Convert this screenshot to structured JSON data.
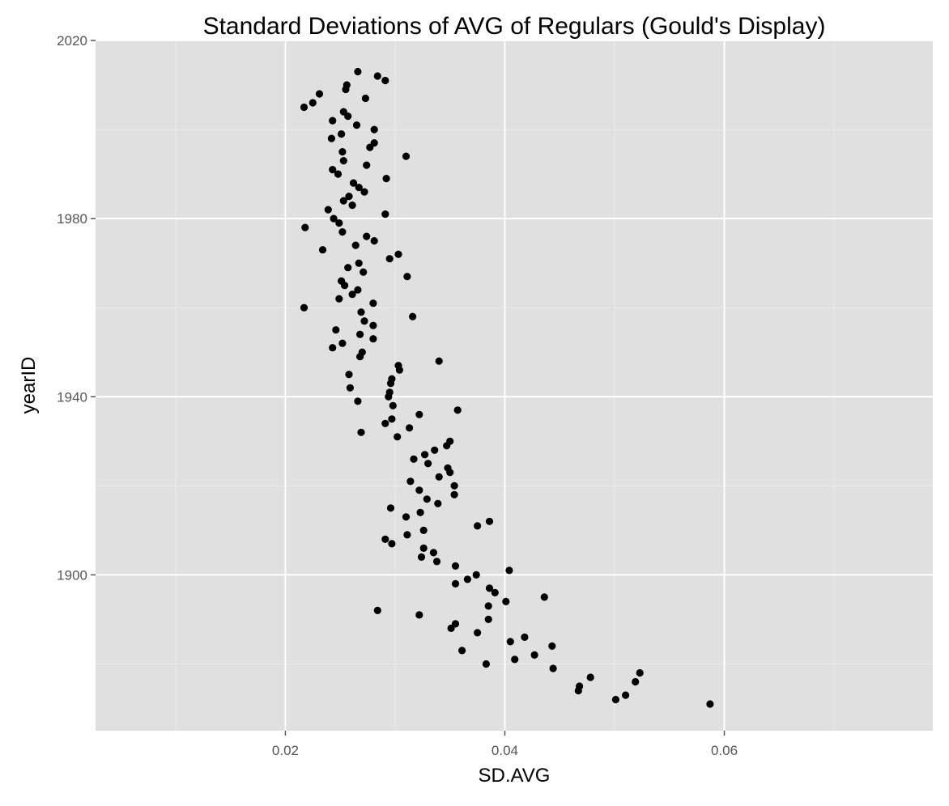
{
  "chart_data": {
    "type": "scatter",
    "title": "Standard Deviations of AVG of Regulars (Gould's Display)",
    "xlabel": "SD.AVG",
    "ylabel": "yearID",
    "xlim": [
      0.0027,
      0.079
    ],
    "ylim": [
      1865,
      2020
    ],
    "x_ticks": [
      0.02,
      0.04,
      0.06
    ],
    "x_tick_labels": [
      "0.02",
      "0.04",
      "0.06"
    ],
    "y_ticks": [
      1900,
      1940,
      1980,
      2020
    ],
    "y_tick_labels": [
      "1900",
      "1940",
      "1980",
      "2020"
    ],
    "grid": true,
    "legend": "none",
    "colors": {
      "panel": "#e0e0e0",
      "grid_major": "#ffffff",
      "grid_minor": "#ececec",
      "point": "#000000"
    },
    "points": [
      {
        "x": 0.0587,
        "y": 1871
      },
      {
        "x": 0.0501,
        "y": 1872
      },
      {
        "x": 0.051,
        "y": 1873
      },
      {
        "x": 0.0467,
        "y": 1874
      },
      {
        "x": 0.0468,
        "y": 1875
      },
      {
        "x": 0.0519,
        "y": 1876
      },
      {
        "x": 0.0478,
        "y": 1877
      },
      {
        "x": 0.0523,
        "y": 1878
      },
      {
        "x": 0.0444,
        "y": 1879
      },
      {
        "x": 0.0383,
        "y": 1880
      },
      {
        "x": 0.0409,
        "y": 1881
      },
      {
        "x": 0.0427,
        "y": 1882
      },
      {
        "x": 0.0361,
        "y": 1883
      },
      {
        "x": 0.0443,
        "y": 1884
      },
      {
        "x": 0.0405,
        "y": 1885
      },
      {
        "x": 0.0418,
        "y": 1886
      },
      {
        "x": 0.0375,
        "y": 1887
      },
      {
        "x": 0.0351,
        "y": 1888
      },
      {
        "x": 0.0355,
        "y": 1889
      },
      {
        "x": 0.0385,
        "y": 1890
      },
      {
        "x": 0.0322,
        "y": 1891
      },
      {
        "x": 0.0284,
        "y": 1892
      },
      {
        "x": 0.0385,
        "y": 1893
      },
      {
        "x": 0.0401,
        "y": 1894
      },
      {
        "x": 0.0436,
        "y": 1895
      },
      {
        "x": 0.0391,
        "y": 1896
      },
      {
        "x": 0.0386,
        "y": 1897
      },
      {
        "x": 0.0355,
        "y": 1898
      },
      {
        "x": 0.0366,
        "y": 1899
      },
      {
        "x": 0.0374,
        "y": 1900
      },
      {
        "x": 0.0404,
        "y": 1901
      },
      {
        "x": 0.0355,
        "y": 1902
      },
      {
        "x": 0.0338,
        "y": 1903
      },
      {
        "x": 0.0324,
        "y": 1904
      },
      {
        "x": 0.0335,
        "y": 1905
      },
      {
        "x": 0.0326,
        "y": 1906
      },
      {
        "x": 0.0297,
        "y": 1907
      },
      {
        "x": 0.0291,
        "y": 1908
      },
      {
        "x": 0.0311,
        "y": 1909
      },
      {
        "x": 0.0326,
        "y": 1910
      },
      {
        "x": 0.0375,
        "y": 1911
      },
      {
        "x": 0.0386,
        "y": 1912
      },
      {
        "x": 0.031,
        "y": 1913
      },
      {
        "x": 0.0323,
        "y": 1914
      },
      {
        "x": 0.0296,
        "y": 1915
      },
      {
        "x": 0.0339,
        "y": 1916
      },
      {
        "x": 0.0329,
        "y": 1917
      },
      {
        "x": 0.0354,
        "y": 1918
      },
      {
        "x": 0.0322,
        "y": 1919
      },
      {
        "x": 0.0354,
        "y": 1920
      },
      {
        "x": 0.0314,
        "y": 1921
      },
      {
        "x": 0.034,
        "y": 1922
      },
      {
        "x": 0.035,
        "y": 1923
      },
      {
        "x": 0.0348,
        "y": 1924
      },
      {
        "x": 0.033,
        "y": 1925
      },
      {
        "x": 0.0317,
        "y": 1926
      },
      {
        "x": 0.0327,
        "y": 1927
      },
      {
        "x": 0.0336,
        "y": 1928
      },
      {
        "x": 0.0347,
        "y": 1929
      },
      {
        "x": 0.035,
        "y": 1930
      },
      {
        "x": 0.0302,
        "y": 1931
      },
      {
        "x": 0.0269,
        "y": 1932
      },
      {
        "x": 0.0313,
        "y": 1933
      },
      {
        "x": 0.0291,
        "y": 1934
      },
      {
        "x": 0.0297,
        "y": 1935
      },
      {
        "x": 0.0322,
        "y": 1936
      },
      {
        "x": 0.0357,
        "y": 1937
      },
      {
        "x": 0.0298,
        "y": 1938
      },
      {
        "x": 0.0266,
        "y": 1939
      },
      {
        "x": 0.0294,
        "y": 1940
      },
      {
        "x": 0.0295,
        "y": 1941
      },
      {
        "x": 0.0259,
        "y": 1942
      },
      {
        "x": 0.0296,
        "y": 1943
      },
      {
        "x": 0.0297,
        "y": 1944
      },
      {
        "x": 0.0258,
        "y": 1945
      },
      {
        "x": 0.0304,
        "y": 1946
      },
      {
        "x": 0.0303,
        "y": 1947
      },
      {
        "x": 0.034,
        "y": 1948
      },
      {
        "x": 0.0268,
        "y": 1949
      },
      {
        "x": 0.027,
        "y": 1950
      },
      {
        "x": 0.0243,
        "y": 1951
      },
      {
        "x": 0.0252,
        "y": 1952
      },
      {
        "x": 0.028,
        "y": 1953
      },
      {
        "x": 0.0268,
        "y": 1954
      },
      {
        "x": 0.0246,
        "y": 1955
      },
      {
        "x": 0.028,
        "y": 1956
      },
      {
        "x": 0.0272,
        "y": 1957
      },
      {
        "x": 0.0316,
        "y": 1958
      },
      {
        "x": 0.0269,
        "y": 1959
      },
      {
        "x": 0.0217,
        "y": 1960
      },
      {
        "x": 0.028,
        "y": 1961
      },
      {
        "x": 0.0249,
        "y": 1962
      },
      {
        "x": 0.0261,
        "y": 1963
      },
      {
        "x": 0.0266,
        "y": 1964
      },
      {
        "x": 0.0254,
        "y": 1965
      },
      {
        "x": 0.0251,
        "y": 1966
      },
      {
        "x": 0.0311,
        "y": 1967
      },
      {
        "x": 0.0271,
        "y": 1968
      },
      {
        "x": 0.0257,
        "y": 1969
      },
      {
        "x": 0.0267,
        "y": 1970
      },
      {
        "x": 0.0295,
        "y": 1971
      },
      {
        "x": 0.0303,
        "y": 1972
      },
      {
        "x": 0.0234,
        "y": 1973
      },
      {
        "x": 0.0264,
        "y": 1974
      },
      {
        "x": 0.0281,
        "y": 1975
      },
      {
        "x": 0.0274,
        "y": 1976
      },
      {
        "x": 0.0252,
        "y": 1977
      },
      {
        "x": 0.0218,
        "y": 1978
      },
      {
        "x": 0.0249,
        "y": 1979
      },
      {
        "x": 0.0244,
        "y": 1980
      },
      {
        "x": 0.0291,
        "y": 1981
      },
      {
        "x": 0.0239,
        "y": 1982
      },
      {
        "x": 0.0261,
        "y": 1983
      },
      {
        "x": 0.0253,
        "y": 1984
      },
      {
        "x": 0.0258,
        "y": 1985
      },
      {
        "x": 0.0272,
        "y": 1986
      },
      {
        "x": 0.0267,
        "y": 1987
      },
      {
        "x": 0.0262,
        "y": 1988
      },
      {
        "x": 0.0292,
        "y": 1989
      },
      {
        "x": 0.0248,
        "y": 1990
      },
      {
        "x": 0.0243,
        "y": 1991
      },
      {
        "x": 0.0274,
        "y": 1992
      },
      {
        "x": 0.0253,
        "y": 1993
      },
      {
        "x": 0.031,
        "y": 1994
      },
      {
        "x": 0.0252,
        "y": 1995
      },
      {
        "x": 0.0277,
        "y": 1996
      },
      {
        "x": 0.0281,
        "y": 1997
      },
      {
        "x": 0.0242,
        "y": 1998
      },
      {
        "x": 0.0251,
        "y": 1999
      },
      {
        "x": 0.0281,
        "y": 2000
      },
      {
        "x": 0.0265,
        "y": 2001
      },
      {
        "x": 0.0243,
        "y": 2002
      },
      {
        "x": 0.0257,
        "y": 2003
      },
      {
        "x": 0.0253,
        "y": 2004
      },
      {
        "x": 0.0217,
        "y": 2005
      },
      {
        "x": 0.0225,
        "y": 2006
      },
      {
        "x": 0.0273,
        "y": 2007
      },
      {
        "x": 0.0231,
        "y": 2008
      },
      {
        "x": 0.0255,
        "y": 2009
      },
      {
        "x": 0.0256,
        "y": 2010
      },
      {
        "x": 0.0291,
        "y": 2011
      },
      {
        "x": 0.0284,
        "y": 2012
      },
      {
        "x": 0.0266,
        "y": 2013
      }
    ]
  }
}
